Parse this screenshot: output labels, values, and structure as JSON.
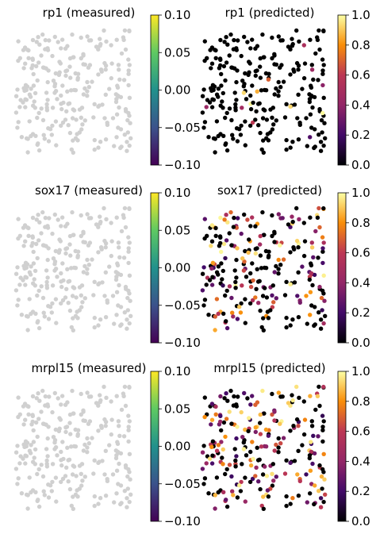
{
  "chart_data": [
    {
      "type": "scatter",
      "title": "rp1 (measured)",
      "gene": "rp1",
      "kind": "measured",
      "colorbar": {
        "cmap": "gray-uniform",
        "range": [
          -0.1,
          0.1
        ],
        "ticks": [
          "0.10",
          "0.05",
          "0.00",
          "−0.05",
          "−0.10"
        ]
      },
      "point_color": "#d0d0d0",
      "seed": 11
    },
    {
      "type": "scatter",
      "title": "rp1 (predicted)",
      "gene": "rp1",
      "kind": "predicted",
      "colorbar": {
        "cmap": "inferno",
        "range": [
          0.0,
          1.0
        ],
        "ticks": [
          "1.0",
          "0.8",
          "0.6",
          "0.4",
          "0.2",
          "0.0"
        ]
      },
      "seed": 11,
      "nonzero_fraction": 0.08
    },
    {
      "type": "scatter",
      "title": "sox17 (measured)",
      "gene": "sox17",
      "kind": "measured",
      "colorbar": {
        "cmap": "gray-uniform",
        "range": [
          -0.1,
          0.1
        ],
        "ticks": [
          "0.10",
          "0.05",
          "0.00",
          "−0.05",
          "−0.10"
        ]
      },
      "point_color": "#d0d0d0",
      "seed": 23
    },
    {
      "type": "scatter",
      "title": "sox17 (predicted)",
      "gene": "sox17",
      "kind": "predicted",
      "colorbar": {
        "cmap": "inferno",
        "range": [
          0.0,
          1.0
        ],
        "ticks": [
          "1.0",
          "0.8",
          "0.6",
          "0.4",
          "0.2",
          "0.0"
        ]
      },
      "seed": 23,
      "nonzero_fraction": 0.45
    },
    {
      "type": "scatter",
      "title": "mrpl15 (measured)",
      "gene": "mrpl15",
      "kind": "measured",
      "colorbar": {
        "cmap": "gray-uniform",
        "range": [
          -0.1,
          0.1
        ],
        "ticks": [
          "0.10",
          "0.05",
          "0.00",
          "−0.05",
          "−0.10"
        ]
      },
      "point_color": "#d0d0d0",
      "seed": 37
    },
    {
      "type": "scatter",
      "title": "mrpl15 (predicted)",
      "gene": "mrpl15",
      "kind": "predicted",
      "colorbar": {
        "cmap": "inferno",
        "range": [
          0.0,
          1.0
        ],
        "ticks": [
          "1.0",
          "0.8",
          "0.6",
          "0.4",
          "0.2",
          "0.0"
        ]
      },
      "seed": 37,
      "nonzero_fraction": 0.55
    }
  ],
  "colors": {
    "viridis_low": "#440154",
    "viridis_mid": "#21918c",
    "viridis_high": "#fde725",
    "inferno_low": "#000004",
    "inferno_mid": "#bc3754",
    "inferno_high": "#fcffa4"
  }
}
